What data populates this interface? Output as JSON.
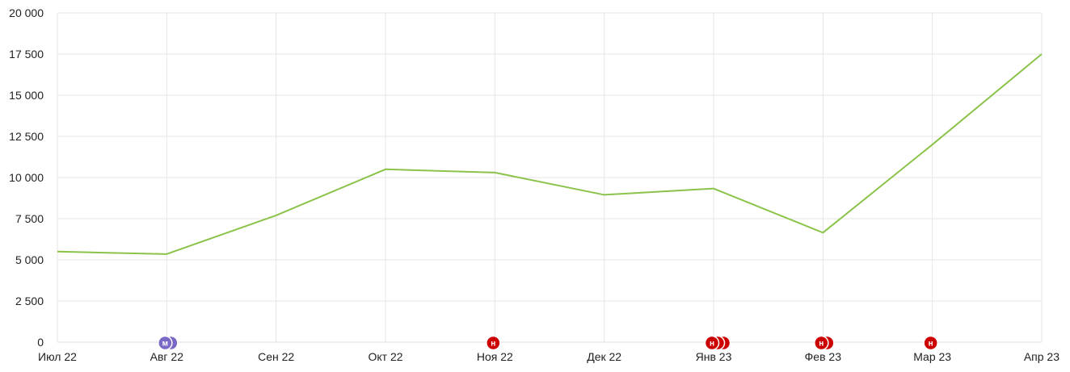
{
  "chart_data": {
    "type": "line",
    "categories": [
      "Июл 22",
      "Авг 22",
      "Сен 22",
      "Окт 22",
      "Ноя 22",
      "Дек 22",
      "Янв 23",
      "Фев 23",
      "Мар 23",
      "Апр 23"
    ],
    "series": [
      {
        "values": [
          5500,
          5350,
          7700,
          10500,
          10300,
          8950,
          9330,
          6650,
          12000,
          17500
        ],
        "color": "#8bc34a"
      }
    ],
    "ylim": [
      0,
      20000
    ],
    "yticks": [
      0,
      2500,
      5000,
      7500,
      10000,
      12500,
      15000,
      17500,
      20000
    ],
    "ytick_labels": [
      "0",
      "2 500",
      "5 000",
      "7 500",
      "10 000",
      "12 500",
      "15 000",
      "17 500",
      "20 000"
    ],
    "grid": true,
    "annotations": [
      {
        "category": "Авг 22",
        "letter": "м",
        "count": 2,
        "color": "#7b68c6"
      },
      {
        "category": "Ноя 22",
        "letter": "н",
        "count": 1,
        "color": "#cc0000"
      },
      {
        "category": "Янв 23",
        "letter": "н",
        "count": 3,
        "color": "#cc0000"
      },
      {
        "category": "Фев 23",
        "letter": "н",
        "count": 2,
        "color": "#cc0000"
      },
      {
        "category": "Мар 23",
        "letter": "н",
        "count": 1,
        "color": "#cc0000"
      }
    ]
  },
  "colors": {
    "grid": "#e6e6e6",
    "axis": "#dddddd",
    "line": "#8bc34a"
  }
}
